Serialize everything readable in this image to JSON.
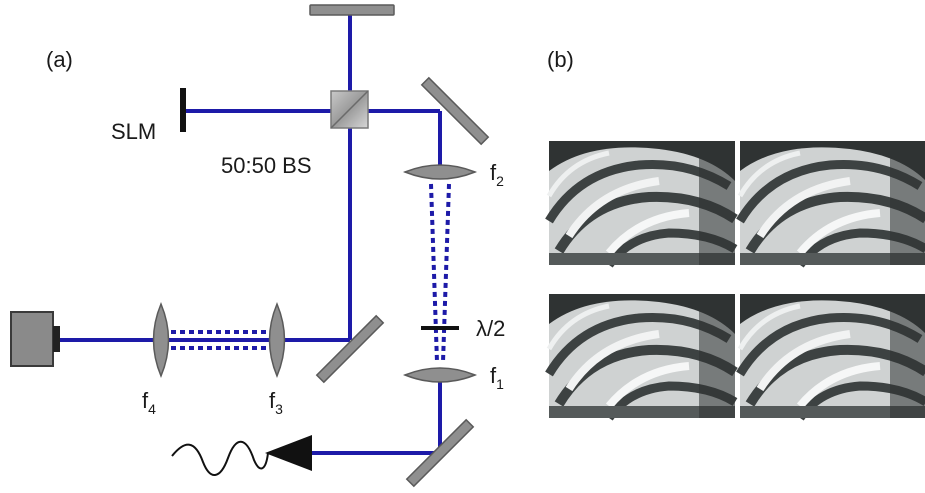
{
  "panel_a": {
    "label": "(a)",
    "slm_label": "SLM",
    "bs_label": "50:50 BS",
    "lens_f1": {
      "base": "f",
      "sub": "1"
    },
    "lens_f2": {
      "base": "f",
      "sub": "2"
    },
    "lens_f3": {
      "base": "f",
      "sub": "3"
    },
    "lens_f4": {
      "base": "f",
      "sub": "4"
    },
    "waveplate_label": "λ/2"
  },
  "panel_b": {
    "label": "(b)"
  },
  "colors": {
    "beam": "#1d1aa8",
    "optic_fill": "#8f8f8f",
    "optic_stroke": "#5a5a5a"
  }
}
